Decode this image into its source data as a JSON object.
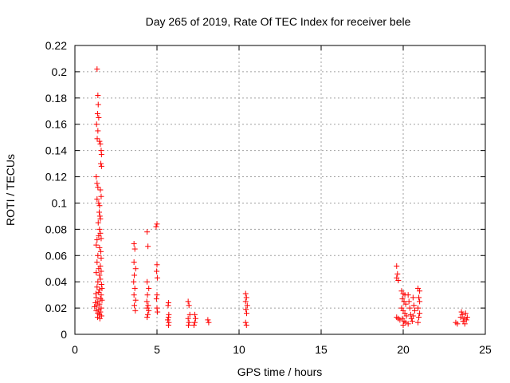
{
  "chart_data": {
    "type": "scatter",
    "title": "Day 265 of 2019, Rate Of TEC Index for receiver bele",
    "xlabel": "GPS time / hours",
    "ylabel": "ROTI / TECUs",
    "xlim": [
      0,
      25
    ],
    "ylim": [
      0,
      0.22
    ],
    "xticks": [
      0,
      5,
      10,
      15,
      20,
      25
    ],
    "yticks": [
      0,
      0.02,
      0.04,
      0.06,
      0.08,
      0.1,
      0.12,
      0.14,
      0.16,
      0.18,
      0.2,
      0.22
    ],
    "grid": true,
    "legend": "none",
    "marker": "plus",
    "color": "#ff0000",
    "points": [
      [
        1.35,
        0.202
      ],
      [
        1.4,
        0.182
      ],
      [
        1.42,
        0.175
      ],
      [
        1.38,
        0.168
      ],
      [
        1.45,
        0.165
      ],
      [
        1.32,
        0.16
      ],
      [
        1.4,
        0.155
      ],
      [
        1.36,
        0.149
      ],
      [
        1.5,
        0.147
      ],
      [
        1.55,
        0.145
      ],
      [
        1.6,
        0.14
      ],
      [
        1.62,
        0.137
      ],
      [
        1.58,
        0.13
      ],
      [
        1.62,
        0.128
      ],
      [
        1.3,
        0.12
      ],
      [
        1.35,
        0.115
      ],
      [
        1.4,
        0.112
      ],
      [
        1.55,
        0.11
      ],
      [
        1.6,
        0.105
      ],
      [
        1.35,
        0.103
      ],
      [
        1.45,
        0.1
      ],
      [
        1.5,
        0.098
      ],
      [
        1.48,
        0.093
      ],
      [
        1.52,
        0.09
      ],
      [
        1.55,
        0.088
      ],
      [
        1.42,
        0.085
      ],
      [
        1.5,
        0.08
      ],
      [
        1.55,
        0.077
      ],
      [
        1.45,
        0.075
      ],
      [
        1.6,
        0.073
      ],
      [
        1.35,
        0.072
      ],
      [
        1.3,
        0.068
      ],
      [
        1.5,
        0.066
      ],
      [
        1.58,
        0.063
      ],
      [
        1.4,
        0.06
      ],
      [
        1.6,
        0.058
      ],
      [
        1.35,
        0.055
      ],
      [
        1.55,
        0.052
      ],
      [
        1.45,
        0.05
      ],
      [
        1.6,
        0.048
      ],
      [
        1.3,
        0.047
      ],
      [
        1.5,
        0.045
      ],
      [
        1.55,
        0.042
      ],
      [
        1.4,
        0.04
      ],
      [
        1.62,
        0.038
      ],
      [
        1.35,
        0.036
      ],
      [
        1.5,
        0.034
      ],
      [
        1.45,
        0.032
      ],
      [
        1.6,
        0.03
      ],
      [
        1.3,
        0.028
      ],
      [
        1.55,
        0.027
      ],
      [
        1.4,
        0.025
      ],
      [
        1.5,
        0.023
      ],
      [
        1.35,
        0.022
      ],
      [
        1.6,
        0.02
      ],
      [
        1.45,
        0.019
      ],
      [
        1.3,
        0.018
      ],
      [
        1.55,
        0.017
      ],
      [
        1.4,
        0.016
      ],
      [
        1.5,
        0.015
      ],
      [
        1.62,
        0.014
      ],
      [
        1.38,
        0.013
      ],
      [
        1.52,
        0.012
      ],
      [
        1.25,
        0.024
      ],
      [
        1.28,
        0.031
      ],
      [
        1.65,
        0.035
      ],
      [
        1.65,
        0.026
      ],
      [
        1.2,
        0.021
      ],
      [
        3.6,
        0.069
      ],
      [
        3.65,
        0.065
      ],
      [
        3.6,
        0.055
      ],
      [
        3.7,
        0.05
      ],
      [
        3.62,
        0.045
      ],
      [
        3.58,
        0.04
      ],
      [
        3.65,
        0.035
      ],
      [
        3.6,
        0.03
      ],
      [
        3.7,
        0.026
      ],
      [
        3.62,
        0.022
      ],
      [
        3.68,
        0.018
      ],
      [
        4.4,
        0.078
      ],
      [
        4.45,
        0.067
      ],
      [
        4.4,
        0.04
      ],
      [
        4.5,
        0.035
      ],
      [
        4.42,
        0.03
      ],
      [
        4.38,
        0.025
      ],
      [
        4.46,
        0.022
      ],
      [
        4.4,
        0.02
      ],
      [
        4.5,
        0.018
      ],
      [
        4.44,
        0.015
      ],
      [
        4.4,
        0.013
      ],
      [
        5.0,
        0.084
      ],
      [
        4.95,
        0.082
      ],
      [
        5.0,
        0.053
      ],
      [
        4.98,
        0.048
      ],
      [
        5.02,
        0.043
      ],
      [
        5.0,
        0.03
      ],
      [
        4.97,
        0.027
      ],
      [
        5.0,
        0.02
      ],
      [
        5.03,
        0.017
      ],
      [
        5.7,
        0.024
      ],
      [
        5.68,
        0.022
      ],
      [
        5.72,
        0.015
      ],
      [
        5.7,
        0.013
      ],
      [
        5.66,
        0.011
      ],
      [
        5.72,
        0.009
      ],
      [
        5.7,
        0.007
      ],
      [
        6.9,
        0.025
      ],
      [
        6.95,
        0.022
      ],
      [
        7.0,
        0.015
      ],
      [
        6.9,
        0.012
      ],
      [
        6.95,
        0.009
      ],
      [
        6.92,
        0.007
      ],
      [
        7.3,
        0.015
      ],
      [
        7.35,
        0.012
      ],
      [
        7.3,
        0.009
      ],
      [
        7.25,
        0.007
      ],
      [
        8.1,
        0.011
      ],
      [
        8.15,
        0.009
      ],
      [
        10.4,
        0.031
      ],
      [
        10.45,
        0.028
      ],
      [
        10.4,
        0.025
      ],
      [
        10.5,
        0.022
      ],
      [
        10.42,
        0.019
      ],
      [
        10.46,
        0.016
      ],
      [
        10.4,
        0.009
      ],
      [
        10.45,
        0.007
      ],
      [
        19.6,
        0.052
      ],
      [
        19.65,
        0.046
      ],
      [
        19.6,
        0.043
      ],
      [
        19.7,
        0.041
      ],
      [
        19.6,
        0.013
      ],
      [
        19.7,
        0.012
      ],
      [
        19.8,
        0.011
      ],
      [
        19.9,
        0.033
      ],
      [
        20.0,
        0.031
      ],
      [
        20.1,
        0.03
      ],
      [
        19.95,
        0.027
      ],
      [
        20.05,
        0.025
      ],
      [
        20.15,
        0.023
      ],
      [
        19.9,
        0.02
      ],
      [
        20.0,
        0.018
      ],
      [
        20.1,
        0.016
      ],
      [
        20.2,
        0.014
      ],
      [
        19.95,
        0.012
      ],
      [
        20.05,
        0.01
      ],
      [
        20.15,
        0.009
      ],
      [
        20.0,
        0.007
      ],
      [
        20.3,
        0.03
      ],
      [
        20.35,
        0.025
      ],
      [
        20.4,
        0.02
      ],
      [
        20.45,
        0.015
      ],
      [
        20.5,
        0.012
      ],
      [
        20.55,
        0.01
      ],
      [
        20.6,
        0.028
      ],
      [
        20.65,
        0.022
      ],
      [
        20.7,
        0.018
      ],
      [
        20.3,
        0.008
      ],
      [
        20.6,
        0.014
      ],
      [
        20.9,
        0.035
      ],
      [
        21.0,
        0.033
      ],
      [
        20.95,
        0.028
      ],
      [
        21.0,
        0.025
      ],
      [
        20.9,
        0.02
      ],
      [
        21.0,
        0.016
      ],
      [
        20.95,
        0.013
      ],
      [
        20.9,
        0.009
      ],
      [
        23.2,
        0.009
      ],
      [
        23.3,
        0.008
      ],
      [
        23.5,
        0.013
      ],
      [
        23.6,
        0.015
      ],
      [
        23.7,
        0.012
      ],
      [
        23.8,
        0.016
      ],
      [
        23.65,
        0.01
      ],
      [
        23.75,
        0.008
      ],
      [
        23.85,
        0.011
      ],
      [
        23.55,
        0.017
      ],
      [
        23.9,
        0.013
      ]
    ]
  }
}
